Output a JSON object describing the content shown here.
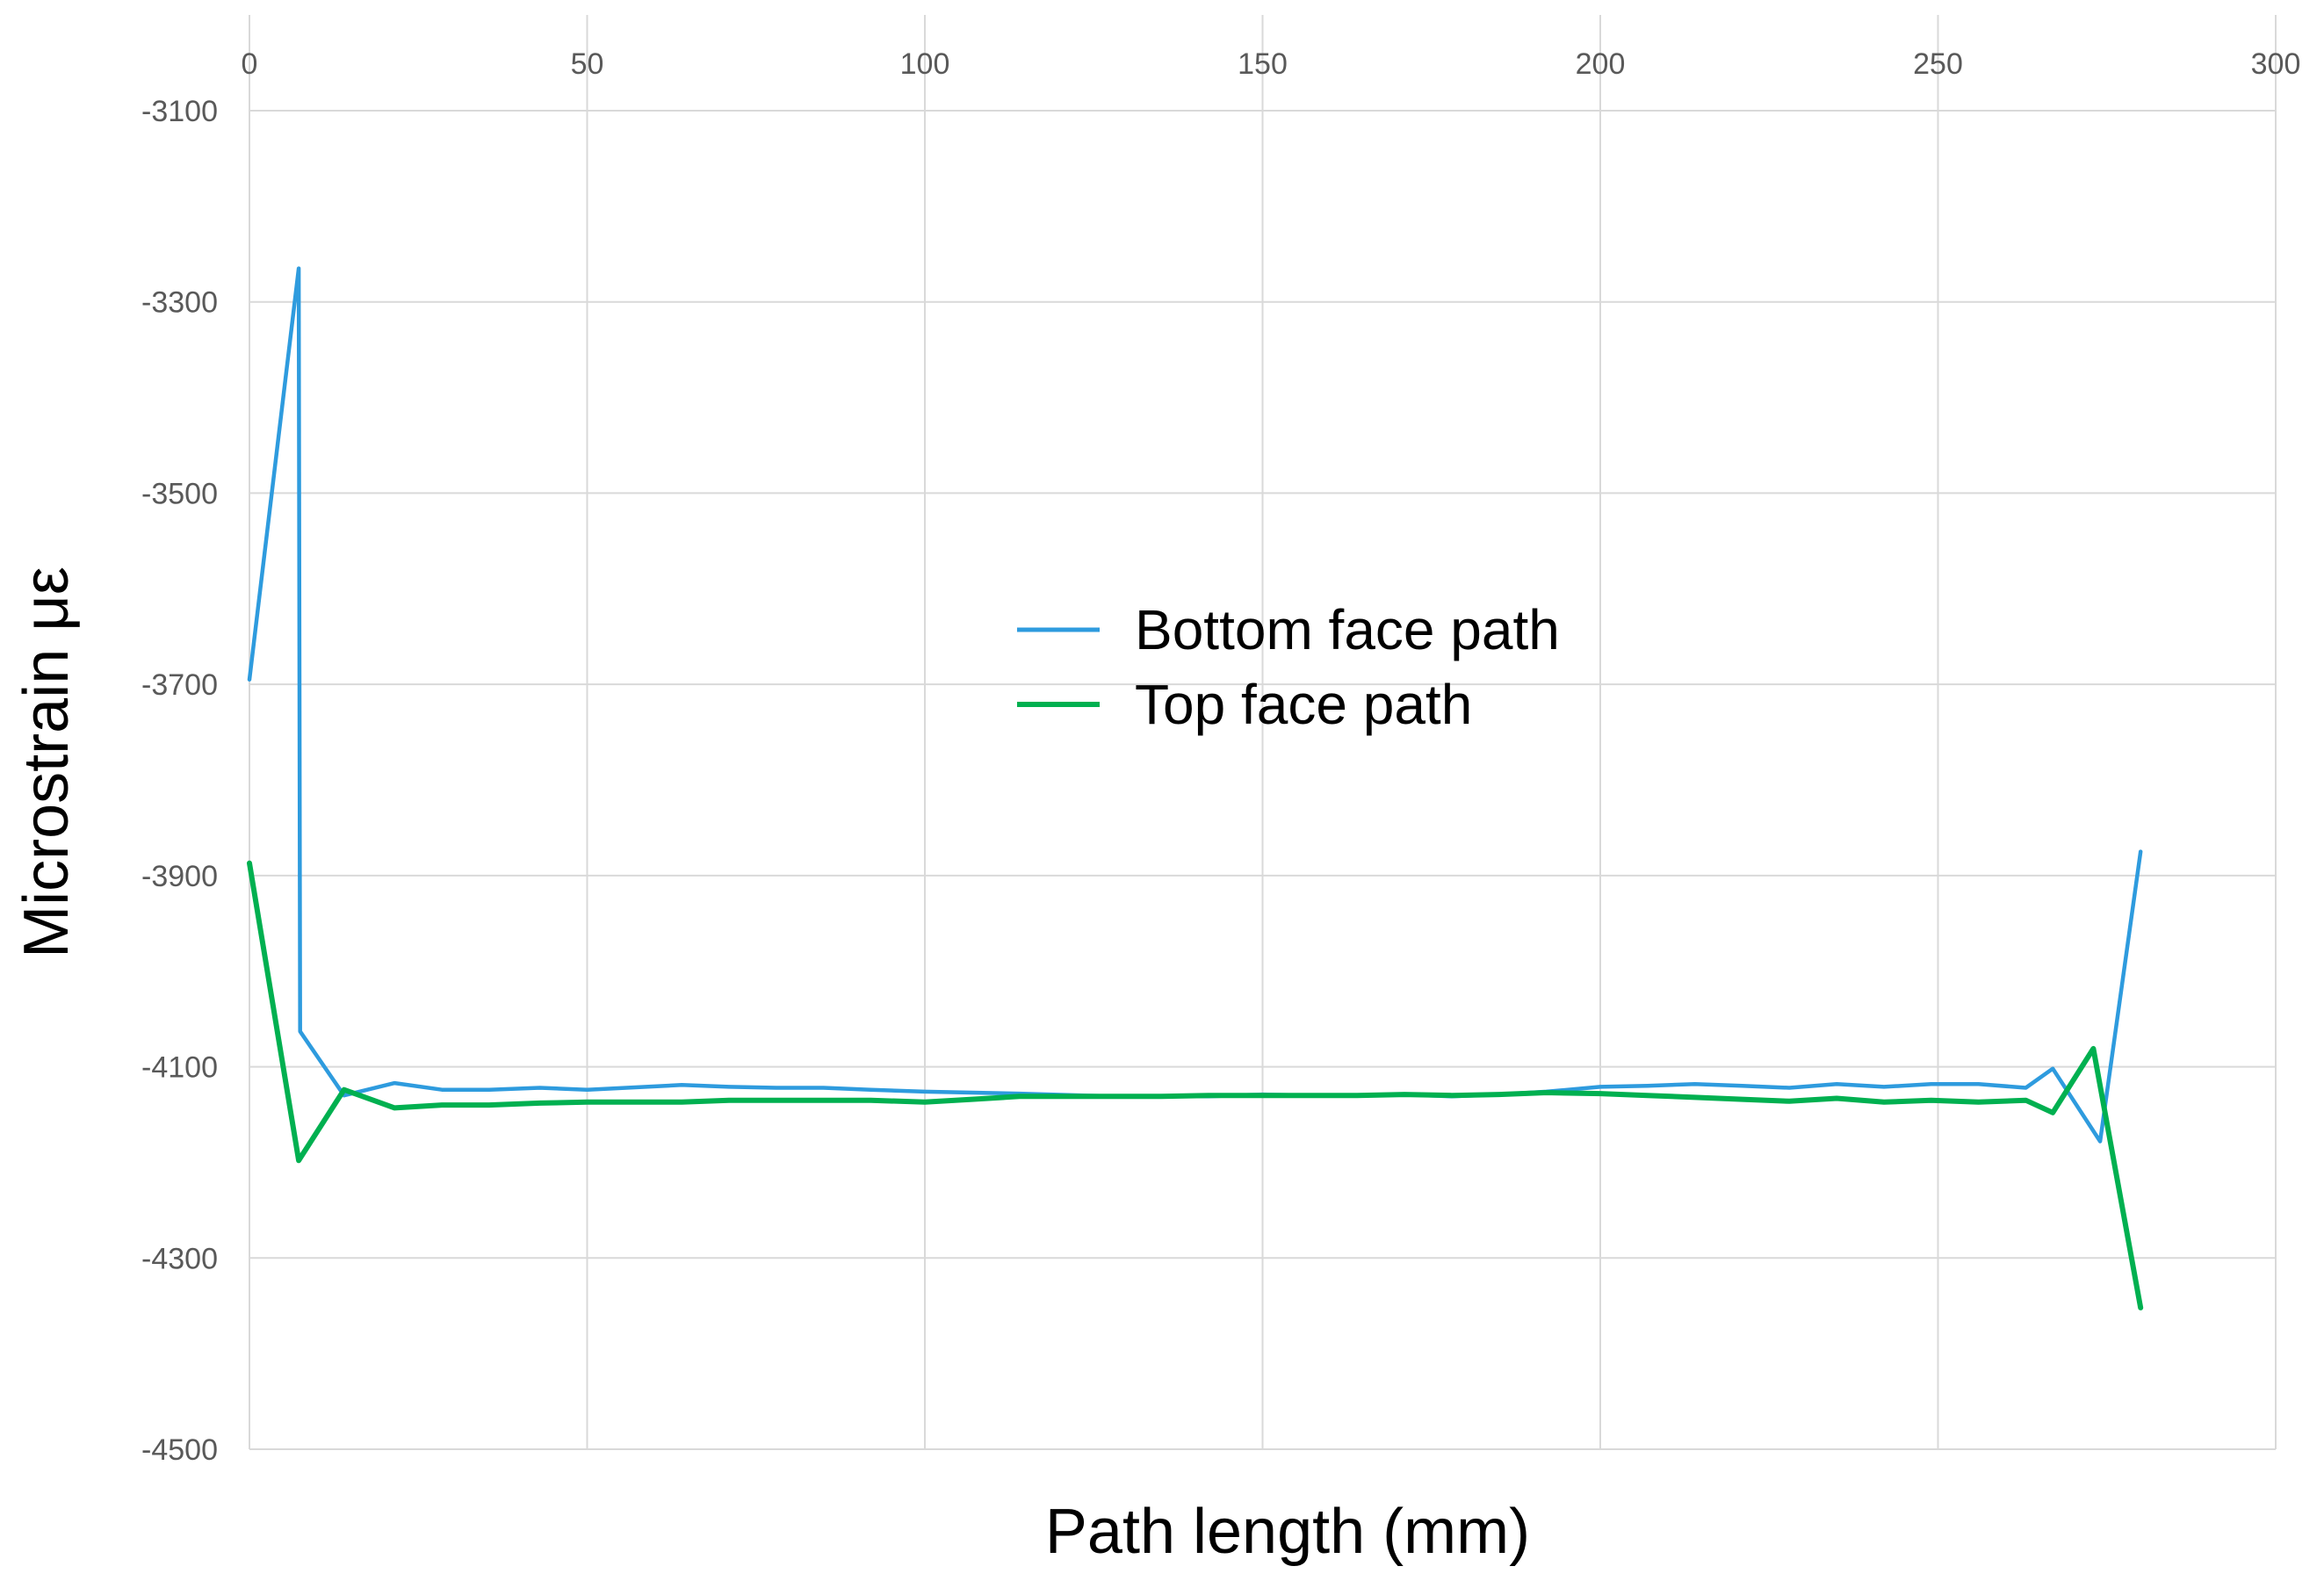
{
  "chart_data": {
    "type": "line",
    "title": "",
    "xlabel": "Path length (mm)",
    "ylabel": "Microstrain με",
    "xlim": [
      0,
      300
    ],
    "ylim": [
      -4500,
      -3000
    ],
    "x_axis_position": "top",
    "x_ticks": [
      0,
      50,
      100,
      150,
      200,
      250,
      300
    ],
    "y_ticks": [
      -3100,
      -3300,
      -3500,
      -3700,
      -3900,
      -4100,
      -4300,
      -4500
    ],
    "grid": true,
    "legend": "center",
    "series": [
      {
        "name": "Bottom face path",
        "color": "#2E9BDE",
        "x": [
          0,
          7.3,
          7.5,
          14,
          21.5,
          28.5,
          35.5,
          43,
          50,
          64,
          71,
          78,
          85,
          92,
          100,
          107,
          114,
          128,
          135,
          142,
          150,
          157,
          164,
          171,
          178,
          185,
          192,
          200,
          207,
          214,
          221,
          228,
          235,
          242,
          249,
          256,
          263,
          267,
          274,
          280
        ],
        "y": [
          -3695,
          -3265,
          -4063,
          -4130,
          -4117,
          -4124,
          -4124,
          -4122,
          -4124,
          -4119,
          -4121,
          -4122,
          -4122,
          -4124,
          -4126,
          -4127,
          -4128,
          -4131,
          -4131,
          -4131,
          -4129,
          -4130,
          -4130,
          -4129,
          -4131,
          -4129,
          -4126,
          -4121,
          -4120,
          -4118,
          -4120,
          -4122,
          -4118,
          -4121,
          -4118,
          -4118,
          -4122,
          -4102,
          -4178,
          -3875
        ]
      },
      {
        "name": "Top face path",
        "color": "#00B050",
        "x": [
          0,
          7.3,
          14,
          21.5,
          28.5,
          35.5,
          43,
          50,
          64,
          71,
          78,
          85,
          92,
          100,
          107,
          114,
          128,
          135,
          142,
          150,
          157,
          164,
          171,
          178,
          185,
          192,
          200,
          207,
          214,
          221,
          228,
          235,
          242,
          249,
          256,
          263,
          267,
          273,
          280
        ],
        "y": [
          -3887,
          -4198,
          -4124,
          -4143,
          -4140,
          -4140,
          -4138,
          -4137,
          -4137,
          -4135,
          -4135,
          -4135,
          -4135,
          -4137,
          -4134,
          -4131,
          -4131,
          -4131,
          -4130,
          -4130,
          -4130,
          -4130,
          -4129,
          -4130,
          -4129,
          -4127,
          -4128,
          -4130,
          -4132,
          -4134,
          -4136,
          -4133,
          -4137,
          -4135,
          -4137,
          -4135,
          -4148,
          -4081,
          -4352
        ]
      }
    ]
  }
}
